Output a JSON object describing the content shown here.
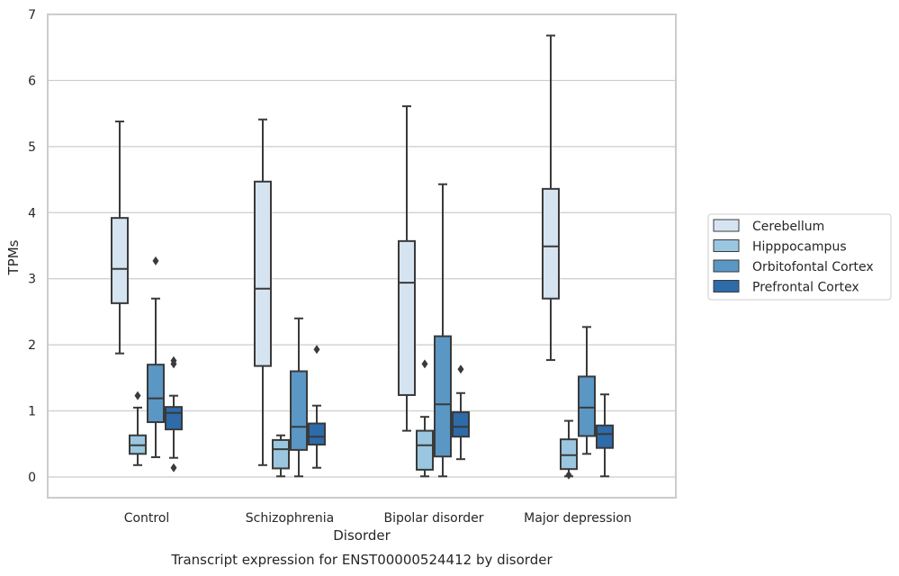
{
  "chart_data": {
    "type": "box",
    "xlabel": "Disorder",
    "ylabel": "TPMs",
    "caption": "Transcript expression for ENST00000524412 by disorder",
    "ylim": [
      -0.3,
      7.0
    ],
    "yticks": [
      0,
      1,
      2,
      3,
      4,
      5,
      6,
      7
    ],
    "grid": "horizontal",
    "legend_position": "right",
    "categories": [
      "Control",
      "Schizophrenia",
      "Bipolar disorder",
      "Major depression"
    ],
    "series": [
      {
        "name": "Cerebellum",
        "color": "#d6e4f2",
        "boxes": [
          {
            "whislo": 1.87,
            "q1": 2.63,
            "med": 3.15,
            "q3": 3.92,
            "whishi": 5.38,
            "fliers": []
          },
          {
            "whislo": 0.18,
            "q1": 1.68,
            "med": 2.85,
            "q3": 4.47,
            "whishi": 5.41,
            "fliers": []
          },
          {
            "whislo": 0.7,
            "q1": 1.24,
            "med": 2.94,
            "q3": 3.57,
            "whishi": 5.61,
            "fliers": []
          },
          {
            "whislo": 1.77,
            "q1": 2.7,
            "med": 3.49,
            "q3": 4.36,
            "whishi": 6.68,
            "fliers": []
          }
        ]
      },
      {
        "name": "Hipppocampus",
        "color": "#9ac7df",
        "boxes": [
          {
            "whislo": 0.18,
            "q1": 0.35,
            "med": 0.48,
            "q3": 0.63,
            "whishi": 1.05,
            "fliers": [
              1.23
            ]
          },
          {
            "whislo": 0.01,
            "q1": 0.13,
            "med": 0.42,
            "q3": 0.56,
            "whishi": 0.63,
            "fliers": []
          },
          {
            "whislo": 0.01,
            "q1": 0.11,
            "med": 0.48,
            "q3": 0.7,
            "whishi": 0.91,
            "fliers": [
              1.71
            ]
          },
          {
            "whislo": 0.01,
            "q1": 0.12,
            "med": 0.33,
            "q3": 0.57,
            "whishi": 0.85,
            "fliers": [
              0.03
            ]
          }
        ]
      },
      {
        "name": "Orbitofontal Cortex",
        "color": "#5a97c4",
        "boxes": [
          {
            "whislo": 0.3,
            "q1": 0.83,
            "med": 1.19,
            "q3": 1.7,
            "whishi": 2.7,
            "fliers": [
              3.27
            ]
          },
          {
            "whislo": 0.01,
            "q1": 0.41,
            "med": 0.76,
            "q3": 1.6,
            "whishi": 2.4,
            "fliers": []
          },
          {
            "whislo": 0.01,
            "q1": 0.31,
            "med": 1.1,
            "q3": 2.13,
            "whishi": 4.43,
            "fliers": []
          },
          {
            "whislo": 0.35,
            "q1": 0.62,
            "med": 1.05,
            "q3": 1.52,
            "whishi": 2.27,
            "fliers": []
          }
        ]
      },
      {
        "name": "Prefrontal Cortex",
        "color": "#2d6ba9",
        "boxes": [
          {
            "whislo": 0.29,
            "q1": 0.72,
            "med": 0.97,
            "q3": 1.06,
            "whishi": 1.23,
            "fliers": [
              0.14,
              1.71,
              1.76
            ]
          },
          {
            "whislo": 0.14,
            "q1": 0.49,
            "med": 0.61,
            "q3": 0.81,
            "whishi": 1.08,
            "fliers": [
              1.93
            ]
          },
          {
            "whislo": 0.27,
            "q1": 0.61,
            "med": 0.76,
            "q3": 0.98,
            "whishi": 1.27,
            "fliers": [
              1.63
            ]
          },
          {
            "whislo": 0.01,
            "q1": 0.44,
            "med": 0.65,
            "q3": 0.78,
            "whishi": 1.25,
            "fliers": []
          }
        ]
      }
    ]
  }
}
